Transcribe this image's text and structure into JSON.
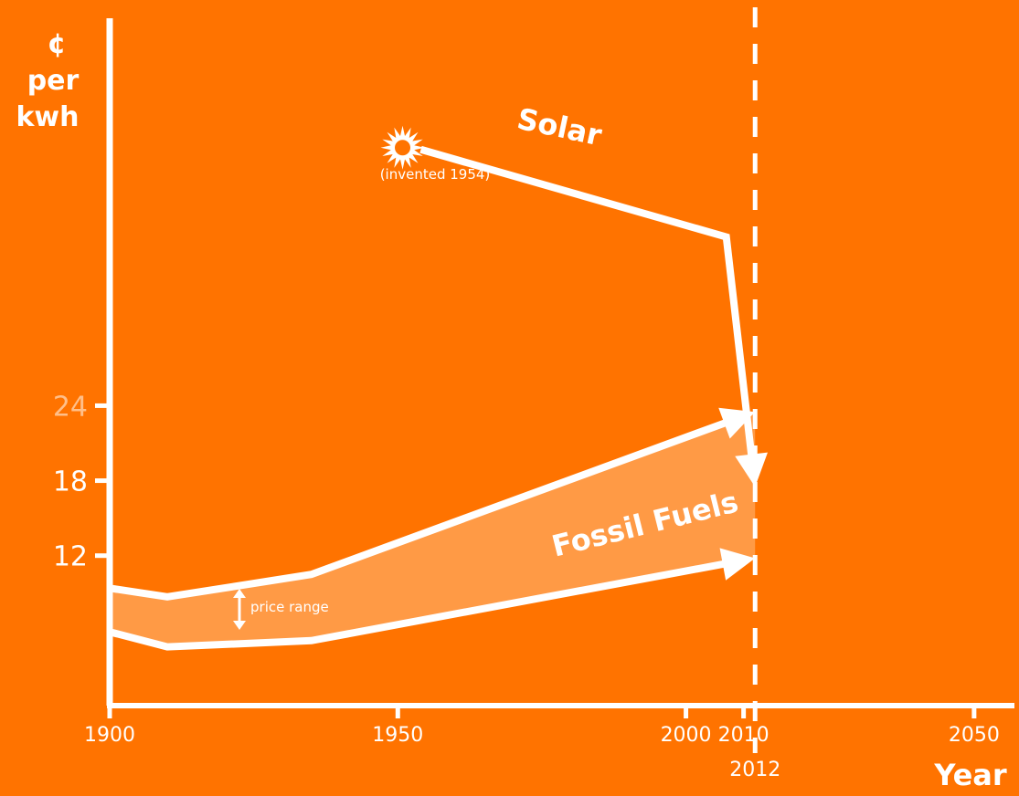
{
  "colors": {
    "background": "#ff7300",
    "foreground": "#ffffff",
    "band": "#ff9a45",
    "highlight_tick": "#ffbf8a"
  },
  "chart_data": {
    "type": "line",
    "y_unit_label": [
      "¢",
      "per",
      "kwh"
    ],
    "xlabel": "Year",
    "x_ticks": [
      1900,
      1950,
      2000,
      2010,
      2050
    ],
    "x_marker": {
      "year": 2012,
      "label": "2012"
    },
    "y_ticks": [
      12,
      18,
      24
    ],
    "xlim": [
      1900,
      2057
    ],
    "ylim": [
      0,
      55
    ],
    "series": [
      {
        "name": "Solar",
        "label_text": "Solar",
        "annotation": "(invented 1954)",
        "icon": "sun-icon",
        "points": [
          [
            1954,
            44.5
          ],
          [
            2007,
            37.5
          ],
          [
            2012,
            17.5
          ]
        ]
      },
      {
        "name": "Fossil Fuels",
        "label_text": "Fossil Fuels",
        "range_label": "price range",
        "upper": [
          [
            1900,
            9.4
          ],
          [
            1910,
            8.7
          ],
          [
            1935,
            10.5
          ],
          [
            2012,
            23.5
          ]
        ],
        "lower": [
          [
            1900,
            5.9
          ],
          [
            1910,
            4.7
          ],
          [
            1935,
            5.2
          ],
          [
            2012,
            11.8
          ]
        ]
      }
    ]
  }
}
